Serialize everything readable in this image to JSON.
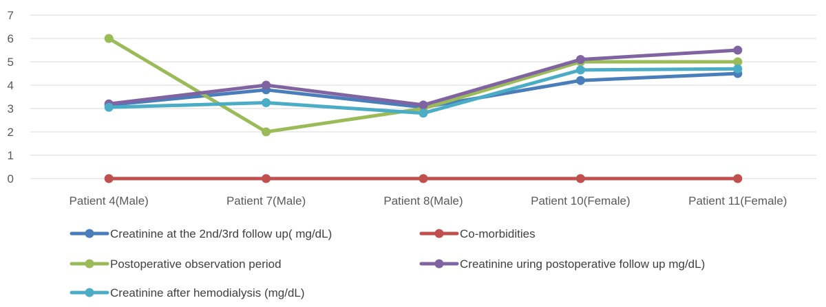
{
  "chart_data": {
    "type": "line",
    "title": "",
    "xlabel": "",
    "ylabel": "",
    "ylim": [
      0,
      7
    ],
    "yticks": [
      0,
      1,
      2,
      3,
      4,
      5,
      6,
      7
    ],
    "grid": true,
    "legend_position": "bottom",
    "categories": [
      "Patient 4(Male)",
      "Patient 7(Male)",
      "Patient 8(Male)",
      "Patient 10(Female)",
      "Patient 11(Female)"
    ],
    "series": [
      {
        "name": "Creatinine at the 2nd/3rd follow up( mg/dL)",
        "color": "#4a7ebb",
        "values": [
          3.15,
          3.8,
          3.05,
          4.2,
          4.5
        ]
      },
      {
        "name": "Co-morbidities",
        "color": "#c0504d",
        "values": [
          0,
          0,
          0,
          0,
          0
        ]
      },
      {
        "name": "Postoperative observation period",
        "color": "#9bbb59",
        "values": [
          6,
          2,
          3,
          5,
          5
        ]
      },
      {
        "name": "Creatinine uring postoperative follow up mg/dL)",
        "color": "#8064a2",
        "values": [
          3.2,
          4.0,
          3.15,
          5.1,
          5.5
        ]
      },
      {
        "name": "Creatinine after hemodialysis (mg/dL)",
        "color": "#4bacc6",
        "values": [
          3.05,
          3.25,
          2.8,
          4.65,
          4.7
        ]
      }
    ]
  }
}
